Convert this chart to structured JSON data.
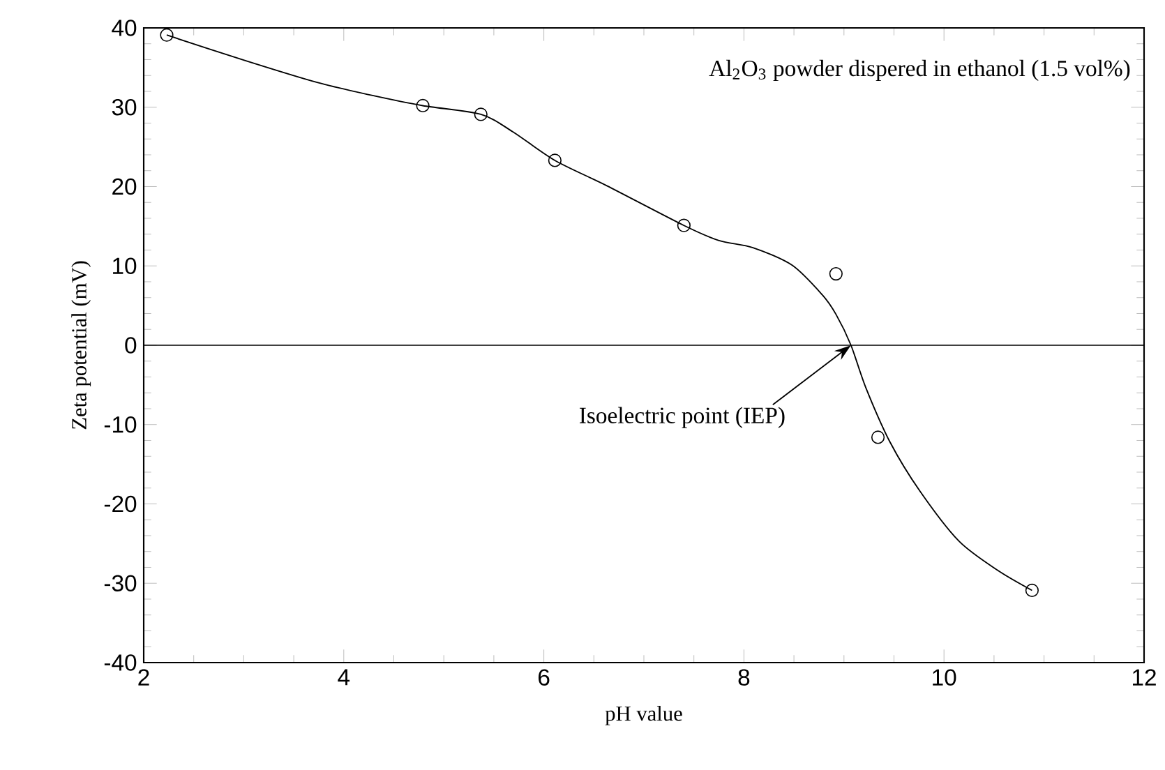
{
  "chart_data": {
    "type": "scatter",
    "xlabel": "pH value",
    "ylabel": "Zeta potential (mV)",
    "xlim": [
      2,
      12
    ],
    "ylim": [
      -40,
      40
    ],
    "xticks": [
      2,
      4,
      6,
      8,
      10,
      12
    ],
    "yticks": [
      -40,
      -30,
      -20,
      -10,
      0,
      10,
      20,
      30,
      40
    ],
    "marker": "circle",
    "line_style": "solid",
    "series": [
      {
        "color": "#000000",
        "x": [
          2.23,
          4.79,
          5.37,
          6.11,
          7.4,
          8.92,
          9.34,
          10.88
        ],
        "values": [
          39.1,
          30.2,
          29.1,
          23.3,
          15.1,
          9.0,
          -11.6,
          -30.9
        ]
      },
      {
        "type": "line",
        "marker": "none",
        "color": "#000000",
        "x": [
          2.23,
          3.01,
          3.74,
          4.28,
          4.79,
          5.37,
          5.69,
          6.11,
          6.63,
          7.4,
          7.75,
          8.09,
          8.48,
          8.78,
          8.92,
          9.07,
          9.22,
          9.46,
          9.76,
          10.15,
          10.54,
          10.88
        ],
        "values": [
          39.1,
          35.9,
          33.1,
          31.5,
          30.2,
          29.1,
          26.9,
          23.3,
          20.1,
          15.1,
          13.2,
          12.3,
          10.1,
          6.4,
          3.9,
          0,
          -5.4,
          -12.2,
          -18.4,
          -24.7,
          -28.4,
          -30.9
        ]
      }
    ],
    "ref_lines": [
      {
        "axis": "y",
        "value": 0,
        "color": "#000000"
      }
    ],
    "annotations": [
      "Al$_{2}$O$_{3}$ powder dispered in ethanol (1.5 vol%)",
      {
        "text": "Isoelectric point (IEP)",
        "x": 9.07,
        "y": 0
      }
    ]
  }
}
